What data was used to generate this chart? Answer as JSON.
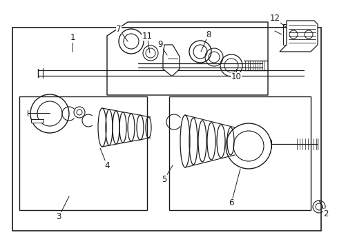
{
  "bg_color": "#ffffff",
  "line_color": "#1a1a1a",
  "lw": 0.9,
  "fs": 8.5,
  "fig_width": 4.89,
  "fig_height": 3.6,
  "dpi": 100
}
